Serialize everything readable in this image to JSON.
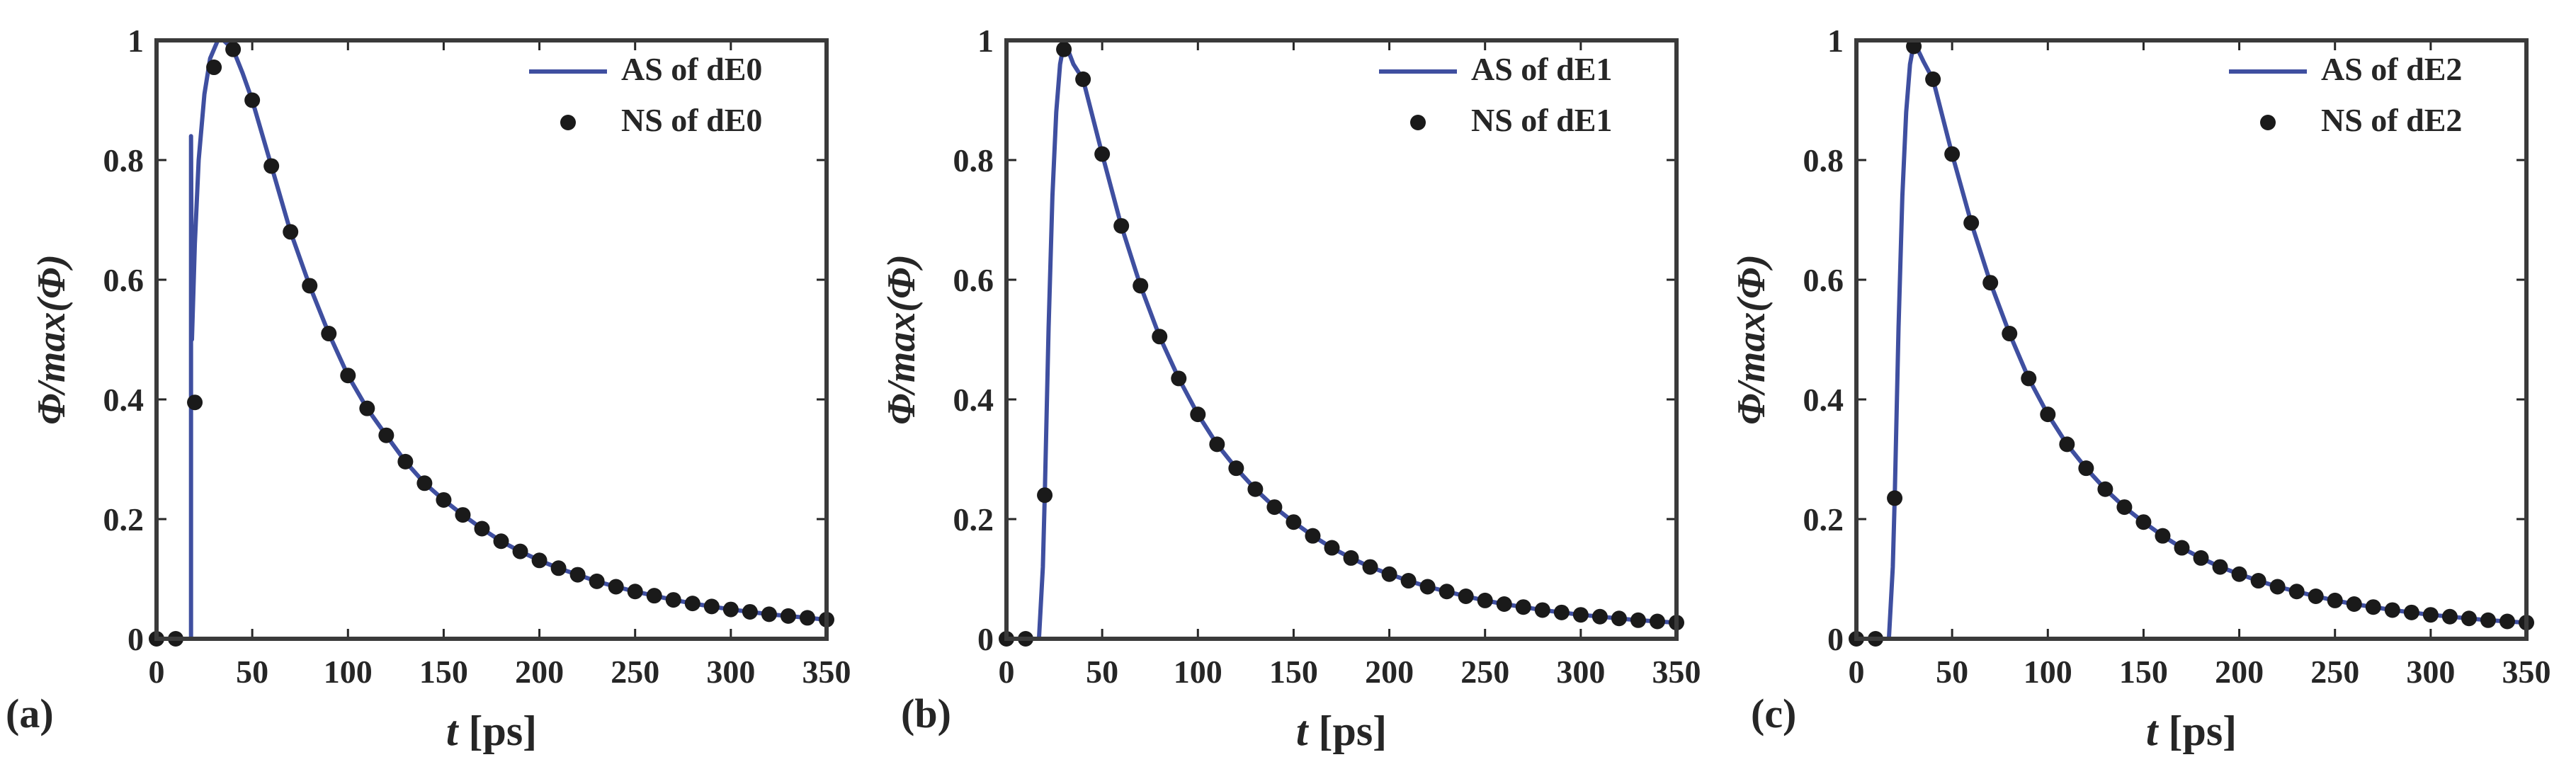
{
  "chart_data": [
    {
      "type": "line",
      "panel_label": "(a)",
      "xlabel_var": "t",
      "xlabel_unit": " [ps]",
      "ylabel": "Φ/max(Φ)",
      "xlim": [
        0,
        350
      ],
      "ylim": [
        0,
        1
      ],
      "xticks": [
        0,
        50,
        100,
        150,
        200,
        250,
        300,
        350
      ],
      "yticks": [
        0,
        0.2,
        0.4,
        0.6,
        0.8,
        1
      ],
      "ytick_labels": [
        "0",
        "0.2",
        "0.4",
        "0.6",
        "0.8",
        "1"
      ],
      "legend_position": "top-right",
      "series": [
        {
          "name": "AS of dE0",
          "kind": "line",
          "color": "#3f4fa0",
          "x": [
            0,
            18,
            18,
            18.5,
            20,
            22,
            25,
            28,
            32,
            35,
            40,
            45,
            50,
            60,
            70,
            80,
            90,
            100,
            110,
            120,
            130,
            140,
            150,
            160,
            170,
            180,
            190,
            200,
            210,
            220,
            230,
            240,
            250,
            260,
            270,
            280,
            290,
            300,
            310,
            320,
            330,
            340,
            350
          ],
          "y": [
            0,
            0,
            0.84,
            0.5,
            0.66,
            0.8,
            0.91,
            0.97,
            1.0,
            1.0,
            0.985,
            0.945,
            0.9,
            0.79,
            0.68,
            0.59,
            0.51,
            0.44,
            0.385,
            0.34,
            0.296,
            0.26,
            0.232,
            0.207,
            0.184,
            0.163,
            0.146,
            0.131,
            0.118,
            0.107,
            0.096,
            0.087,
            0.079,
            0.072,
            0.065,
            0.059,
            0.054,
            0.049,
            0.045,
            0.041,
            0.038,
            0.035,
            0.032
          ]
        },
        {
          "name": "NS of dE0",
          "kind": "markers",
          "color": "#1a1a1a",
          "x": [
            0,
            10,
            20,
            30,
            40,
            50,
            60,
            70,
            80,
            90,
            100,
            110,
            120,
            130,
            140,
            150,
            160,
            170,
            180,
            190,
            200,
            210,
            220,
            230,
            240,
            250,
            260,
            270,
            280,
            290,
            300,
            310,
            320,
            330,
            340,
            350
          ],
          "y": [
            0,
            0,
            0.395,
            0.955,
            0.985,
            0.9,
            0.79,
            0.68,
            0.59,
            0.51,
            0.44,
            0.385,
            0.34,
            0.296,
            0.26,
            0.232,
            0.207,
            0.184,
            0.163,
            0.146,
            0.131,
            0.118,
            0.107,
            0.096,
            0.087,
            0.079,
            0.072,
            0.065,
            0.059,
            0.054,
            0.049,
            0.045,
            0.041,
            0.038,
            0.035,
            0.032
          ]
        }
      ]
    },
    {
      "type": "line",
      "panel_label": "(b)",
      "xlabel_var": "t",
      "xlabel_unit": " [ps]",
      "ylabel": "Φ/max(Φ)",
      "xlim": [
        0,
        350
      ],
      "ylim": [
        0,
        1
      ],
      "xticks": [
        0,
        50,
        100,
        150,
        200,
        250,
        300,
        350
      ],
      "yticks": [
        0,
        0.2,
        0.4,
        0.6,
        0.8,
        1
      ],
      "ytick_labels": [
        "0",
        "0.2",
        "0.4",
        "0.6",
        "0.8",
        "1"
      ],
      "legend_position": "top-right",
      "series": [
        {
          "name": "AS of dE1",
          "kind": "line",
          "color": "#3f4fa0",
          "x": [
            0,
            17,
            19,
            20,
            22,
            24,
            26,
            28,
            30,
            32,
            35,
            40,
            50,
            60,
            70,
            80,
            90,
            100,
            110,
            120,
            130,
            140,
            150,
            160,
            170,
            180,
            190,
            200,
            210,
            220,
            230,
            240,
            250,
            260,
            270,
            280,
            290,
            300,
            310,
            320,
            330,
            340,
            350
          ],
          "y": [
            0,
            0,
            0.12,
            0.24,
            0.52,
            0.74,
            0.88,
            0.96,
            0.995,
            0.985,
            0.96,
            0.935,
            0.81,
            0.69,
            0.59,
            0.505,
            0.435,
            0.375,
            0.325,
            0.285,
            0.25,
            0.22,
            0.195,
            0.172,
            0.152,
            0.135,
            0.12,
            0.108,
            0.097,
            0.087,
            0.079,
            0.071,
            0.064,
            0.058,
            0.053,
            0.048,
            0.044,
            0.04,
            0.037,
            0.034,
            0.031,
            0.029,
            0.027
          ]
        },
        {
          "name": "NS of dE1",
          "kind": "markers",
          "color": "#1a1a1a",
          "x": [
            0,
            10,
            20,
            30,
            40,
            50,
            60,
            70,
            80,
            90,
            100,
            110,
            120,
            130,
            140,
            150,
            160,
            170,
            180,
            190,
            200,
            210,
            220,
            230,
            240,
            250,
            260,
            270,
            280,
            290,
            300,
            310,
            320,
            330,
            340,
            350
          ],
          "y": [
            0,
            0,
            0.24,
            0.985,
            0.935,
            0.81,
            0.69,
            0.59,
            0.505,
            0.435,
            0.375,
            0.325,
            0.285,
            0.25,
            0.22,
            0.195,
            0.172,
            0.152,
            0.135,
            0.12,
            0.108,
            0.097,
            0.087,
            0.079,
            0.071,
            0.064,
            0.058,
            0.053,
            0.048,
            0.044,
            0.04,
            0.037,
            0.034,
            0.031,
            0.029,
            0.027
          ]
        }
      ]
    },
    {
      "type": "line",
      "panel_label": "(c)",
      "xlabel_var": "t",
      "xlabel_unit": " [ps]",
      "ylabel": "Φ/max(Φ)",
      "xlim": [
        0,
        350
      ],
      "ylim": [
        0,
        1
      ],
      "xticks": [
        0,
        50,
        100,
        150,
        200,
        250,
        300,
        350
      ],
      "yticks": [
        0,
        0.2,
        0.4,
        0.6,
        0.8,
        1
      ],
      "ytick_labels": [
        "0",
        "0.2",
        "0.4",
        "0.6",
        "0.8",
        "1"
      ],
      "legend_position": "top-right",
      "series": [
        {
          "name": "AS of dE2",
          "kind": "line",
          "color": "#3f4fa0",
          "x": [
            0,
            17,
            19,
            20,
            22,
            24,
            26,
            28,
            30,
            32,
            35,
            40,
            50,
            60,
            70,
            80,
            90,
            100,
            110,
            120,
            130,
            140,
            150,
            160,
            170,
            180,
            190,
            200,
            210,
            220,
            230,
            240,
            250,
            260,
            270,
            280,
            290,
            300,
            310,
            320,
            330,
            340,
            350
          ],
          "y": [
            0,
            0,
            0.12,
            0.235,
            0.52,
            0.74,
            0.88,
            0.96,
            0.995,
            0.985,
            0.965,
            0.935,
            0.81,
            0.695,
            0.595,
            0.51,
            0.435,
            0.375,
            0.325,
            0.285,
            0.25,
            0.22,
            0.195,
            0.172,
            0.152,
            0.135,
            0.12,
            0.108,
            0.097,
            0.087,
            0.079,
            0.071,
            0.064,
            0.058,
            0.053,
            0.048,
            0.044,
            0.04,
            0.037,
            0.034,
            0.031,
            0.029,
            0.027
          ]
        },
        {
          "name": "NS of dE2",
          "kind": "markers",
          "color": "#1a1a1a",
          "x": [
            0,
            10,
            20,
            30,
            40,
            50,
            60,
            70,
            80,
            90,
            100,
            110,
            120,
            130,
            140,
            150,
            160,
            170,
            180,
            190,
            200,
            210,
            220,
            230,
            240,
            250,
            260,
            270,
            280,
            290,
            300,
            310,
            320,
            330,
            340,
            350
          ],
          "y": [
            0,
            0,
            0.235,
            0.99,
            0.935,
            0.81,
            0.695,
            0.595,
            0.51,
            0.435,
            0.375,
            0.325,
            0.285,
            0.25,
            0.22,
            0.195,
            0.172,
            0.152,
            0.135,
            0.12,
            0.108,
            0.097,
            0.087,
            0.079,
            0.071,
            0.064,
            0.058,
            0.053,
            0.048,
            0.044,
            0.04,
            0.037,
            0.034,
            0.031,
            0.029,
            0.027
          ]
        }
      ]
    }
  ]
}
